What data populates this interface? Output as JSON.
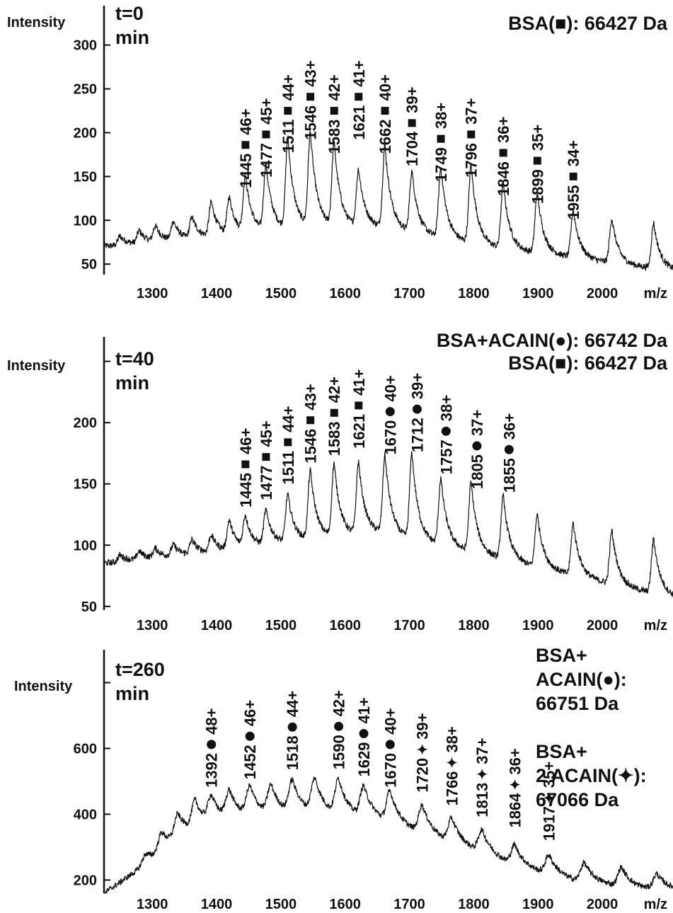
{
  "chart_data": [
    {
      "type": "line",
      "ylabel": "Intensity",
      "xlabel": "m/z",
      "time_label": [
        "t=0",
        "min"
      ],
      "info_lines": [
        "BSA(■): 66427 Da"
      ],
      "xlim": [
        1225,
        2110
      ],
      "ylim": [
        38,
        345
      ],
      "x_ticks": [
        1300,
        1400,
        1500,
        1600,
        1700,
        1800,
        1900,
        2000
      ],
      "y_ticks": [
        50,
        100,
        150,
        200,
        250,
        300
      ],
      "baseline": [
        [
          1225,
          70
        ],
        [
          1400,
          82
        ],
        [
          1550,
          93
        ],
        [
          1650,
          92
        ],
        [
          1750,
          80
        ],
        [
          1850,
          67
        ],
        [
          1950,
          58
        ],
        [
          2050,
          48
        ],
        [
          2110,
          43
        ]
      ],
      "peaks": [
        {
          "x": 1200,
          "y": 80
        },
        {
          "x": 1250,
          "y": 82
        },
        {
          "x": 1280,
          "y": 88
        },
        {
          "x": 1305,
          "y": 93
        },
        {
          "x": 1333,
          "y": 98
        },
        {
          "x": 1362,
          "y": 103
        },
        {
          "x": 1392,
          "y": 120
        },
        {
          "x": 1420,
          "y": 125
        },
        {
          "x": 1445,
          "y": 148
        },
        {
          "x": 1477,
          "y": 162
        },
        {
          "x": 1511,
          "y": 192
        },
        {
          "x": 1546,
          "y": 198
        },
        {
          "x": 1583,
          "y": 187
        },
        {
          "x": 1621,
          "y": 157
        },
        {
          "x": 1662,
          "y": 185
        },
        {
          "x": 1704,
          "y": 155
        },
        {
          "x": 1749,
          "y": 160
        },
        {
          "x": 1796,
          "y": 163
        },
        {
          "x": 1846,
          "y": 142
        },
        {
          "x": 1899,
          "y": 131
        },
        {
          "x": 1955,
          "y": 112
        },
        {
          "x": 2015,
          "y": 102
        },
        {
          "x": 2080,
          "y": 97
        },
        {
          "x": 2140,
          "y": 93
        }
      ],
      "peak_labels": [
        {
          "mz": "1445",
          "charge": "46+",
          "marker": "square",
          "x": 1445,
          "y": 186
        },
        {
          "mz": "1477",
          "charge": "45+",
          "marker": "square",
          "x": 1477,
          "y": 198
        },
        {
          "mz": "1511",
          "charge": "44+",
          "marker": "square",
          "x": 1511,
          "y": 225
        },
        {
          "mz": "1546",
          "charge": "43+",
          "marker": "square",
          "x": 1546,
          "y": 241
        },
        {
          "mz": "1583",
          "charge": "42+",
          "marker": "square",
          "x": 1583,
          "y": 225
        },
        {
          "mz": "1621",
          "charge": "41+",
          "marker": "square",
          "x": 1621,
          "y": 241
        },
        {
          "mz": "1662",
          "charge": "40+",
          "marker": "square",
          "x": 1662,
          "y": 225
        },
        {
          "mz": "1704",
          "charge": "39+",
          "marker": "square",
          "x": 1704,
          "y": 211
        },
        {
          "mz": "1749",
          "charge": "38+",
          "marker": "square",
          "x": 1749,
          "y": 193
        },
        {
          "mz": "1796",
          "charge": "37+",
          "marker": "square",
          "x": 1796,
          "y": 198
        },
        {
          "mz": "1846",
          "charge": "36+",
          "marker": "square",
          "x": 1846,
          "y": 177
        },
        {
          "mz": "1899",
          "charge": "35+",
          "marker": "square",
          "x": 1899,
          "y": 168
        },
        {
          "mz": "1955",
          "charge": "34+",
          "marker": "square",
          "x": 1955,
          "y": 150
        }
      ]
    },
    {
      "type": "line",
      "ylabel": "Intensity",
      "xlabel": "m/z",
      "time_label": [
        "t=40",
        "min"
      ],
      "info_lines": [
        "BSA+ACAIN(●): 66742 Da",
        "BSA(■): 66427 Da"
      ],
      "xlim": [
        1225,
        2110
      ],
      "ylim": [
        47,
        270
      ],
      "x_ticks": [
        1300,
        1400,
        1500,
        1600,
        1700,
        1800,
        1900,
        2000
      ],
      "y_ticks": [
        50,
        100,
        150,
        200
      ],
      "baseline": [
        [
          1225,
          85
        ],
        [
          1400,
          95
        ],
        [
          1550,
          105
        ],
        [
          1650,
          110
        ],
        [
          1750,
          100
        ],
        [
          1850,
          88
        ],
        [
          1950,
          76
        ],
        [
          2050,
          64
        ],
        [
          2110,
          58
        ]
      ],
      "peaks": [
        {
          "x": 1200,
          "y": 90
        },
        {
          "x": 1250,
          "y": 92
        },
        {
          "x": 1280,
          "y": 95
        },
        {
          "x": 1305,
          "y": 97
        },
        {
          "x": 1333,
          "y": 100
        },
        {
          "x": 1362,
          "y": 104
        },
        {
          "x": 1392,
          "y": 108
        },
        {
          "x": 1420,
          "y": 120
        },
        {
          "x": 1445,
          "y": 123
        },
        {
          "x": 1477,
          "y": 128
        },
        {
          "x": 1511,
          "y": 141
        },
        {
          "x": 1546,
          "y": 160
        },
        {
          "x": 1583,
          "y": 166
        },
        {
          "x": 1621,
          "y": 167
        },
        {
          "x": 1662,
          "y": 173
        },
        {
          "x": 1704,
          "y": 175
        },
        {
          "x": 1749,
          "y": 154
        },
        {
          "x": 1796,
          "y": 151
        },
        {
          "x": 1846,
          "y": 140
        },
        {
          "x": 1899,
          "y": 125
        },
        {
          "x": 1955,
          "y": 118
        },
        {
          "x": 2015,
          "y": 112
        },
        {
          "x": 2080,
          "y": 105
        },
        {
          "x": 2140,
          "y": 102
        }
      ],
      "peak_labels": [
        {
          "mz": "1445",
          "charge": "46+",
          "marker": "square",
          "x": 1445,
          "y": 166
        },
        {
          "mz": "1477",
          "charge": "45+",
          "marker": "square",
          "x": 1477,
          "y": 172
        },
        {
          "mz": "1511",
          "charge": "44+",
          "marker": "square",
          "x": 1511,
          "y": 184
        },
        {
          "mz": "1546",
          "charge": "43+",
          "marker": "square",
          "x": 1546,
          "y": 202
        },
        {
          "mz": "1583",
          "charge": "42+",
          "marker": "square",
          "x": 1583,
          "y": 208
        },
        {
          "mz": "1621",
          "charge": "41+",
          "marker": "square",
          "x": 1621,
          "y": 214
        },
        {
          "mz": "1670",
          "charge": "40+",
          "marker": "circle",
          "x": 1670,
          "y": 209
        },
        {
          "mz": "1712",
          "charge": "39+",
          "marker": "circle",
          "x": 1712,
          "y": 211
        },
        {
          "mz": "1757",
          "charge": "38+",
          "marker": "circle",
          "x": 1757,
          "y": 193
        },
        {
          "mz": "1805",
          "charge": "37+",
          "marker": "circle",
          "x": 1805,
          "y": 181
        },
        {
          "mz": "1855",
          "charge": "36+",
          "marker": "circle",
          "x": 1855,
          "y": 178
        }
      ]
    },
    {
      "type": "line",
      "ylabel": "Intensity",
      "xlabel": "m/z",
      "time_label": [
        "t=260",
        "min"
      ],
      "info_lines": [
        "BSA+",
        "ACAIN(●):",
        "66751 Da",
        "",
        "BSA+",
        "2 ACAIN(✦):",
        "67066 Da"
      ],
      "xlim": [
        1225,
        2110
      ],
      "ylim": [
        160,
        900
      ],
      "x_ticks": [
        1300,
        1400,
        1500,
        1600,
        1700,
        1800,
        1900,
        2000
      ],
      "y_ticks": [
        200,
        400,
        600
      ],
      "baseline": [
        [
          1225,
          160
        ],
        [
          1300,
          260
        ],
        [
          1350,
          330
        ],
        [
          1400,
          370
        ],
        [
          1450,
          390
        ],
        [
          1550,
          400
        ],
        [
          1650,
          380
        ],
        [
          1720,
          340
        ],
        [
          1800,
          290
        ],
        [
          1870,
          240
        ],
        [
          1950,
          200
        ],
        [
          2050,
          175
        ],
        [
          2110,
          170
        ]
      ],
      "peaks": [
        {
          "x": 1262,
          "y": 210
        },
        {
          "x": 1290,
          "y": 280
        },
        {
          "x": 1315,
          "y": 340
        },
        {
          "x": 1340,
          "y": 390
        },
        {
          "x": 1367,
          "y": 430
        },
        {
          "x": 1392,
          "y": 440
        },
        {
          "x": 1420,
          "y": 460
        },
        {
          "x": 1452,
          "y": 475
        },
        {
          "x": 1485,
          "y": 480
        },
        {
          "x": 1518,
          "y": 495
        },
        {
          "x": 1553,
          "y": 500
        },
        {
          "x": 1590,
          "y": 500
        },
        {
          "x": 1629,
          "y": 478
        },
        {
          "x": 1670,
          "y": 465
        },
        {
          "x": 1720,
          "y": 425
        },
        {
          "x": 1766,
          "y": 385
        },
        {
          "x": 1813,
          "y": 350
        },
        {
          "x": 1864,
          "y": 305
        },
        {
          "x": 1917,
          "y": 275
        },
        {
          "x": 1972,
          "y": 252
        },
        {
          "x": 2030,
          "y": 238
        },
        {
          "x": 2085,
          "y": 218
        },
        {
          "x": 2140,
          "y": 210
        }
      ],
      "peak_labels": [
        {
          "mz": "1392",
          "charge": "48+",
          "marker": "circle",
          "x": 1392,
          "y": 612
        },
        {
          "mz": "1452",
          "charge": "46+",
          "marker": "circle",
          "x": 1452,
          "y": 637
        },
        {
          "mz": "1518",
          "charge": "44+",
          "marker": "circle",
          "x": 1518,
          "y": 665
        },
        {
          "mz": "1590",
          "charge": "42+",
          "marker": "circle",
          "x": 1590,
          "y": 667
        },
        {
          "mz": "1629",
          "charge": "41+",
          "marker": "circle",
          "x": 1629,
          "y": 645
        },
        {
          "mz": "1670",
          "charge": "40+",
          "marker": "circle",
          "x": 1670,
          "y": 612
        },
        {
          "mz": "1720",
          "charge": "39+",
          "marker": "star",
          "x": 1720,
          "y": 597
        },
        {
          "mz": "1766",
          "charge": "38+",
          "marker": "star",
          "x": 1766,
          "y": 557
        },
        {
          "mz": "1813",
          "charge": "37+",
          "marker": "star",
          "x": 1813,
          "y": 522
        },
        {
          "mz": "1864",
          "charge": "36+",
          "marker": "star",
          "x": 1864,
          "y": 490
        },
        {
          "mz": "1917",
          "charge": "35+",
          "marker": "star",
          "x": 1917,
          "y": 450
        }
      ]
    }
  ]
}
